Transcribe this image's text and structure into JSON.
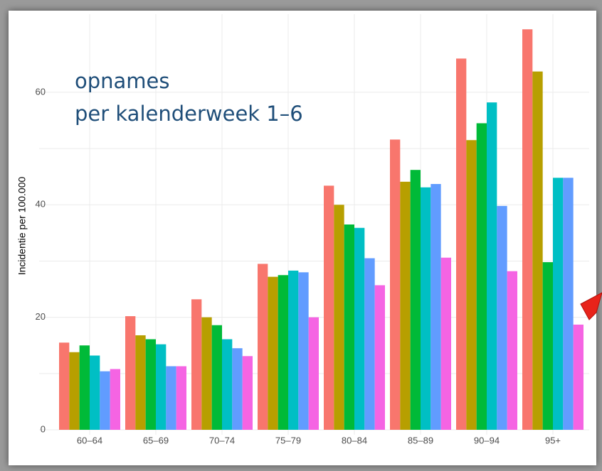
{
  "chart_data": {
    "type": "bar",
    "title": "opnames",
    "subtitle": "per kalenderweek 1–6",
    "y_label": "Incidentie per 100.000",
    "categories": [
      "60–64",
      "65–69",
      "70–74",
      "75–79",
      "80–84",
      "85–89",
      "90–94",
      "95+"
    ],
    "series": [
      {
        "color": "#F8766D",
        "values": [
          15.5,
          20.2,
          23.2,
          29.5,
          43.4,
          51.6,
          66.0,
          71.2
        ]
      },
      {
        "color": "#B79F00",
        "values": [
          13.8,
          16.8,
          20.0,
          27.2,
          40.0,
          44.1,
          51.5,
          63.7
        ]
      },
      {
        "color": "#00BA38",
        "values": [
          15.0,
          16.1,
          18.6,
          27.5,
          36.5,
          46.2,
          54.5,
          29.8
        ]
      },
      {
        "color": "#00BFC4",
        "values": [
          13.2,
          15.2,
          16.1,
          28.3,
          35.9,
          43.1,
          58.2,
          44.8
        ]
      },
      {
        "color": "#619CFF",
        "values": [
          10.4,
          11.3,
          14.5,
          28.0,
          30.5,
          43.7,
          39.8,
          44.8
        ]
      },
      {
        "color": "#F564E3",
        "values": [
          10.8,
          11.3,
          13.1,
          20.0,
          25.7,
          30.6,
          28.2,
          18.7
        ]
      }
    ],
    "ylim": [
      0,
      73
    ],
    "yticks": [
      0,
      20,
      40,
      60
    ],
    "grid": true
  }
}
